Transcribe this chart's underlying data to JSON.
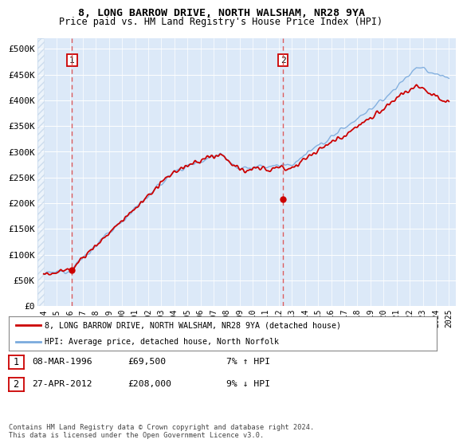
{
  "title1": "8, LONG BARROW DRIVE, NORTH WALSHAM, NR28 9YA",
  "title2": "Price paid vs. HM Land Registry's House Price Index (HPI)",
  "legend1": "8, LONG BARROW DRIVE, NORTH WALSHAM, NR28 9YA (detached house)",
  "legend2": "HPI: Average price, detached house, North Norfolk",
  "annotation1_date": "08-MAR-1996",
  "annotation1_price": "£69,500",
  "annotation1_hpi": "7% ↑ HPI",
  "annotation2_date": "27-APR-2012",
  "annotation2_price": "£208,000",
  "annotation2_hpi": "9% ↓ HPI",
  "footnote": "Contains HM Land Registry data © Crown copyright and database right 2024.\nThis data is licensed under the Open Government Licence v3.0.",
  "point1_year": 1996.18,
  "point1_value": 69500,
  "point2_year": 2012.32,
  "point2_value": 208000,
  "ylim_min": 0,
  "ylim_max": 520000,
  "xlim_min": 1993.5,
  "xlim_max": 2025.5,
  "background_color": "#dce9f8",
  "grid_color": "#ffffff",
  "line_color_red": "#cc0000",
  "line_color_blue": "#7aaadd",
  "dashed_line_color": "#dd4444",
  "box_color": "#cc0000"
}
